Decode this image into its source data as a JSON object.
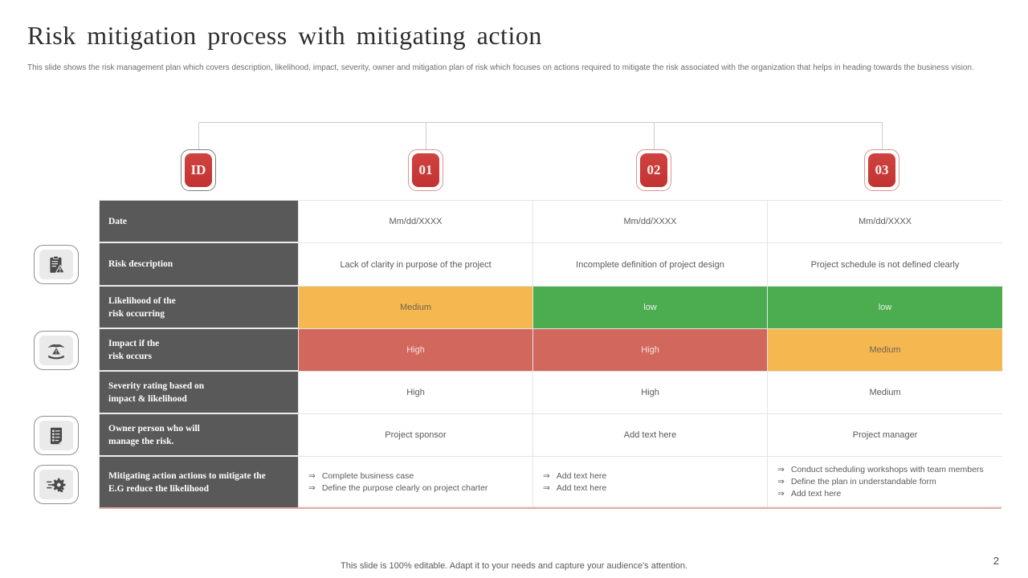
{
  "slide": {
    "title": "Risk mitigation process with mitigating action",
    "subtitle": "This slide shows the risk management plan which covers description, likelihood, impact, severity, owner and mitigation plan of risk which focuses on actions required to mitigate the risk associated with the organization that helps in heading towards the business vision.",
    "footer": "This slide is 100% editable. Adapt it to your needs and capture your audience's attention.",
    "page_number": "2"
  },
  "badges": [
    {
      "label": "ID"
    },
    {
      "label": "01"
    },
    {
      "label": "02"
    },
    {
      "label": "03"
    }
  ],
  "icons": [
    {
      "name": "clipboard-risk-icon"
    },
    {
      "name": "hand-warning-icon"
    },
    {
      "name": "checklist-icon"
    },
    {
      "name": "gear-action-icon"
    }
  ],
  "colors": {
    "badge_red": "#c23231",
    "header_gray": "#595959",
    "orange": "#f5b851",
    "green": "#4cad50",
    "red": "#d2675e",
    "table_bottom_accent": "#e7ada3"
  },
  "table": {
    "rows": [
      {
        "label": "Date",
        "type": "text",
        "values": [
          "Mm/dd/XXXX",
          "Mm/dd/XXXX",
          "Mm/dd/XXXX"
        ]
      },
      {
        "label": "Risk description",
        "type": "text",
        "values": [
          "Lack of clarity in purpose of the project",
          "Incomplete definition of project design",
          "Project schedule is not defined clearly"
        ]
      },
      {
        "label": "Likelihood of the\nrisk occurring",
        "type": "rating",
        "values": [
          "Medium",
          "low",
          "low"
        ],
        "cell_colors": [
          "orange",
          "green",
          "green"
        ]
      },
      {
        "label": "Impact if the\nrisk occurs",
        "type": "rating",
        "values": [
          "High",
          "High",
          "Medium"
        ],
        "cell_colors": [
          "red",
          "red",
          "orange"
        ]
      },
      {
        "label": "Severity rating based on\nimpact & likelihood",
        "type": "text",
        "values": [
          "High",
          "High",
          "Medium"
        ]
      },
      {
        "label": "Owner person who will\nmanage the risk.",
        "type": "text",
        "values": [
          "Project sponsor",
          "Add text here",
          "Project manager"
        ]
      },
      {
        "label": "Mitigating action actions to mitigate the\nE.G reduce the likelihood",
        "type": "list",
        "bullet": "⇒",
        "values": [
          [
            "Complete business case",
            "Define the purpose clearly on project charter"
          ],
          [
            "Add text here",
            "Add text here"
          ],
          [
            "Conduct scheduling workshops with team members",
            "Define the plan in understandable form",
            "Add text here"
          ]
        ]
      }
    ]
  }
}
